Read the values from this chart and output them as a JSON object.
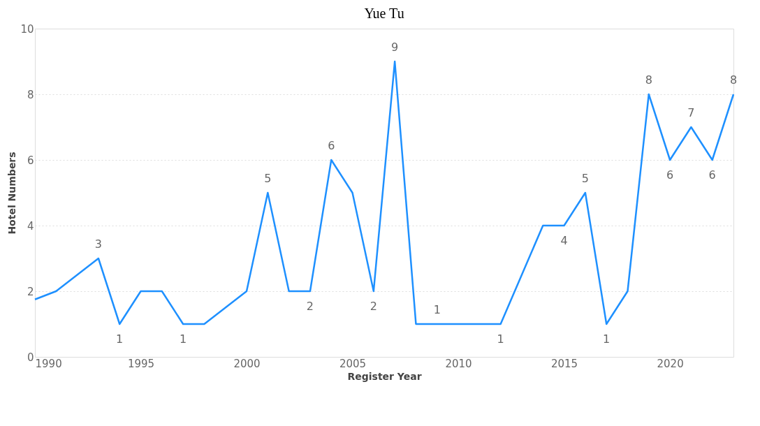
{
  "chart_data": {
    "type": "line",
    "title": "Yue Tu",
    "xlabel": "Register Year",
    "ylabel": "Hotel Numbers",
    "x": [
      1990,
      1991,
      1992,
      1993,
      1994,
      1995,
      1996,
      1997,
      1998,
      1999,
      2000,
      2001,
      2002,
      2003,
      2004,
      2005,
      2006,
      2007,
      2008,
      2009,
      2010,
      2011,
      2012,
      2013,
      2014,
      2015,
      2016,
      2017,
      2018,
      2019,
      2020,
      2021,
      2022,
      2023
    ],
    "series": [
      {
        "color": "#1e90ff",
        "values": [
          1.75,
          2,
          2.5,
          3,
          1,
          2,
          2,
          1,
          1,
          1.5,
          2,
          5,
          2,
          2,
          6,
          5,
          2,
          9,
          1,
          1,
          1,
          1,
          1,
          2.5,
          4,
          4,
          5,
          1,
          2,
          8,
          6,
          7,
          6,
          8
        ],
        "value_labels": [
          null,
          null,
          null,
          "3",
          "1",
          null,
          null,
          "1",
          null,
          null,
          null,
          "5",
          null,
          "2",
          "6",
          null,
          "2",
          "9",
          null,
          "1",
          null,
          null,
          "1",
          null,
          null,
          "4",
          "5",
          "1",
          null,
          "8",
          "6",
          "7",
          "6",
          "8"
        ]
      }
    ],
    "xlim": [
      1990,
      2023
    ],
    "xticks": [
      1990,
      1995,
      2000,
      2005,
      2010,
      2015,
      2020
    ],
    "ylim": [
      0,
      10
    ],
    "yticks": [
      0,
      2,
      4,
      6,
      8,
      10
    ],
    "grid": "y",
    "line_style": "solid"
  }
}
